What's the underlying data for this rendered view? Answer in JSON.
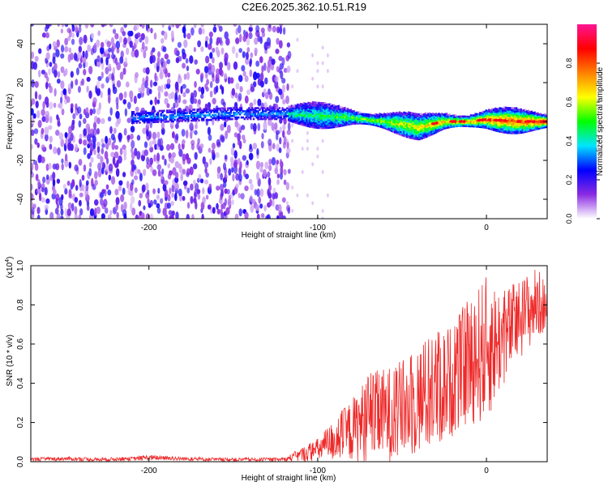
{
  "title": "C2E6.2025.362.10.51.R19",
  "colors": {
    "snr_line": "#ee2a2a",
    "axis": "#000000",
    "spectrogram_low": "#8f3cf0",
    "spectrogram_high": "#ff1f1f"
  },
  "chart_data": [
    {
      "type": "heatmap",
      "description_source": "spectrogram",
      "xlabel": "Height of straight line (km)",
      "ylabel": "Frequency (Hz)",
      "xlim": [
        -270,
        36
      ],
      "ylim": [
        -50,
        50
      ],
      "xticks": [
        -200,
        -100,
        0
      ],
      "xtick_labels": [
        "-200",
        "-100",
        "0"
      ],
      "yticks": [
        -40,
        -20,
        0,
        20,
        40
      ],
      "ytick_labels": [
        "-40",
        "-20",
        "0",
        "20",
        "40"
      ],
      "noise_region_x": [
        -270,
        -118
      ],
      "signal_track": {
        "x": [
          -210,
          -150,
          -120,
          -100,
          -80,
          -60,
          -40,
          -25,
          -10,
          0,
          20,
          36
        ],
        "frequency": [
          2,
          4,
          4,
          3,
          2,
          0,
          -3,
          0,
          0,
          1,
          0,
          0
        ]
      },
      "colorbar": {
        "label": "Normalized spectral amplitude",
        "range": [
          0.0,
          1.0
        ],
        "ticks": [
          0.0,
          0.2,
          0.4,
          0.6,
          0.8
        ],
        "tick_labels": [
          "0.0",
          "0.2",
          "0.4",
          "0.6",
          "0.8"
        ],
        "colormap": [
          "#ffffff",
          "#8a2be2",
          "#0000ff",
          "#00e5ff",
          "#00ff00",
          "#ffff00",
          "#ff8000",
          "#ff0000",
          "#ff1493"
        ]
      }
    },
    {
      "type": "line",
      "xlabel": "Height of straight line (km)",
      "ylabel": "SNR (10 * v/v)",
      "y_multiplier": "(x10",
      "y_multiplier_exp": "4",
      "y_multiplier_close": ")",
      "xlim": [
        -270,
        36
      ],
      "ylim": [
        0.0,
        1.0
      ],
      "xticks": [
        -200,
        -100,
        0
      ],
      "xtick_labels": [
        "-200",
        "-100",
        "0"
      ],
      "yticks": [
        0.0,
        0.2,
        0.4,
        0.6,
        0.8,
        1.0
      ],
      "ytick_labels": [
        "0.0",
        "0.2",
        "0.4",
        "0.6",
        "0.8",
        "1.0"
      ],
      "series": [
        {
          "color": "#ee2a2a",
          "x": [
            -270,
            -250,
            -230,
            -210,
            -200,
            -180,
            -160,
            -140,
            -120,
            -110,
            -100,
            -90,
            -80,
            -70,
            -60,
            -50,
            -40,
            -30,
            -20,
            -10,
            0,
            10,
            20,
            30,
            36
          ],
          "y": [
            0.01,
            0.015,
            0.01,
            0.015,
            0.02,
            0.015,
            0.01,
            0.01,
            0.01,
            0.03,
            0.06,
            0.08,
            0.12,
            0.15,
            0.2,
            0.25,
            0.3,
            0.35,
            0.4,
            0.5,
            0.55,
            0.62,
            0.72,
            0.8,
            0.78
          ],
          "y_max_envelope": [
            0.02,
            0.025,
            0.02,
            0.025,
            0.035,
            0.025,
            0.02,
            0.02,
            0.02,
            0.07,
            0.12,
            0.22,
            0.32,
            0.45,
            0.48,
            0.52,
            0.6,
            0.68,
            0.7,
            0.85,
            0.95,
            0.88,
            0.94,
            1.0,
            0.9
          ]
        }
      ]
    }
  ]
}
